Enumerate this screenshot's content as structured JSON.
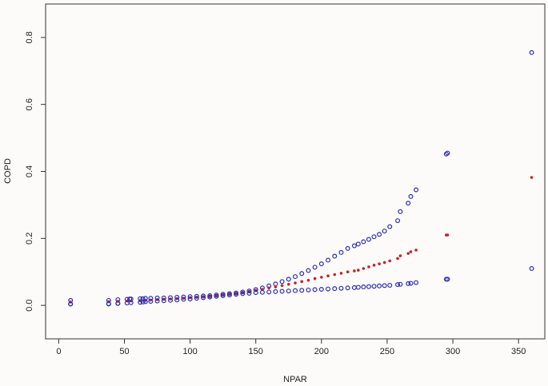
{
  "chart_data": {
    "type": "scatter",
    "xlabel": "NPAR",
    "ylabel": "COPD",
    "xlim": [
      -10,
      370
    ],
    "ylim": [
      -0.1,
      0.9
    ],
    "x_ticks": [
      0,
      50,
      100,
      150,
      200,
      250,
      300,
      350
    ],
    "y_ticks": [
      0.0,
      0.2,
      0.4,
      0.6,
      0.8
    ],
    "grid": false,
    "legend": "none",
    "series": [
      {
        "role": "upper-bound",
        "color": "#2b2fb0",
        "marker": "open-circle",
        "x": [
          9,
          9,
          38,
          38,
          45,
          45,
          52,
          54,
          55,
          62,
          64,
          66,
          70,
          75,
          80,
          85,
          90,
          95,
          100,
          105,
          110,
          115,
          120,
          125,
          130,
          135,
          140,
          145,
          150,
          155,
          160,
          165,
          170,
          175,
          180,
          185,
          190,
          195,
          200,
          205,
          210,
          215,
          220,
          225,
          228,
          232,
          236,
          240,
          244,
          248,
          252,
          258,
          260,
          266,
          268,
          272,
          295,
          296,
          360
        ],
        "y": [
          0.015,
          0.004,
          0.015,
          0.004,
          0.017,
          0.006,
          0.018,
          0.019,
          0.019,
          0.02,
          0.02,
          0.021,
          0.021,
          0.022,
          0.022,
          0.023,
          0.024,
          0.025,
          0.026,
          0.027,
          0.028,
          0.029,
          0.031,
          0.033,
          0.035,
          0.037,
          0.04,
          0.043,
          0.047,
          0.052,
          0.058,
          0.064,
          0.071,
          0.078,
          0.086,
          0.095,
          0.104,
          0.114,
          0.124,
          0.135,
          0.147,
          0.158,
          0.17,
          0.178,
          0.183,
          0.19,
          0.197,
          0.205,
          0.212,
          0.222,
          0.235,
          0.253,
          0.28,
          0.305,
          0.325,
          0.345,
          0.452,
          0.455,
          0.755
        ]
      },
      {
        "role": "estimate",
        "color": "#c0272d",
        "marker": "filled-dot",
        "x": [
          9,
          38,
          45,
          52,
          55,
          62,
          66,
          70,
          75,
          80,
          85,
          90,
          95,
          100,
          105,
          110,
          115,
          120,
          125,
          130,
          135,
          140,
          145,
          150,
          155,
          160,
          165,
          170,
          175,
          180,
          185,
          190,
          195,
          200,
          205,
          210,
          215,
          220,
          225,
          228,
          232,
          236,
          240,
          244,
          248,
          252,
          258,
          260,
          266,
          268,
          272,
          295,
          296,
          360
        ],
        "y": [
          0.01,
          0.011,
          0.012,
          0.013,
          0.013,
          0.014,
          0.015,
          0.016,
          0.017,
          0.018,
          0.019,
          0.02,
          0.021,
          0.023,
          0.024,
          0.026,
          0.028,
          0.03,
          0.032,
          0.034,
          0.036,
          0.039,
          0.042,
          0.045,
          0.048,
          0.052,
          0.055,
          0.059,
          0.063,
          0.067,
          0.071,
          0.075,
          0.08,
          0.084,
          0.088,
          0.092,
          0.096,
          0.1,
          0.103,
          0.105,
          0.11,
          0.115,
          0.12,
          0.124,
          0.128,
          0.133,
          0.14,
          0.148,
          0.155,
          0.16,
          0.165,
          0.21,
          0.21,
          0.382
        ]
      },
      {
        "role": "lower-bound",
        "color": "#2b2fb0",
        "marker": "open-circle",
        "x": [
          9,
          38,
          45,
          52,
          55,
          62,
          64,
          66,
          70,
          75,
          80,
          85,
          90,
          95,
          100,
          105,
          110,
          115,
          120,
          125,
          130,
          135,
          140,
          145,
          150,
          155,
          160,
          165,
          170,
          175,
          180,
          185,
          190,
          195,
          200,
          205,
          210,
          215,
          220,
          225,
          228,
          232,
          236,
          240,
          244,
          248,
          252,
          258,
          260,
          266,
          268,
          272,
          295,
          296,
          360
        ],
        "y": [
          0.004,
          0.005,
          0.006,
          0.007,
          0.008,
          0.009,
          0.01,
          0.011,
          0.012,
          0.013,
          0.014,
          0.015,
          0.016,
          0.018,
          0.019,
          0.021,
          0.023,
          0.025,
          0.027,
          0.029,
          0.031,
          0.033,
          0.035,
          0.036,
          0.038,
          0.039,
          0.04,
          0.041,
          0.042,
          0.043,
          0.044,
          0.045,
          0.046,
          0.047,
          0.048,
          0.049,
          0.05,
          0.051,
          0.052,
          0.053,
          0.054,
          0.055,
          0.056,
          0.057,
          0.058,
          0.059,
          0.06,
          0.062,
          0.063,
          0.065,
          0.066,
          0.068,
          0.078,
          0.078,
          0.11
        ]
      }
    ]
  }
}
